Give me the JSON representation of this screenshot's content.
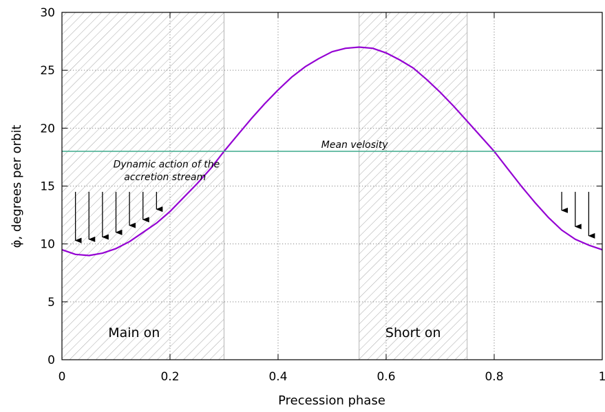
{
  "chart_data": {
    "type": "line",
    "title": "",
    "xlabel": "Precession phase",
    "ylabel": "φ̇, degrees per orbit",
    "xlim": [
      0,
      1
    ],
    "ylim": [
      0,
      30
    ],
    "x_ticks": [
      0,
      0.2,
      0.4,
      0.6,
      0.8,
      1
    ],
    "x_tick_labels": [
      "0",
      "0.2",
      "0.4",
      "0.6",
      "0.8",
      "1"
    ],
    "y_ticks": [
      0,
      5,
      10,
      15,
      20,
      25,
      30
    ],
    "y_tick_labels": [
      "0",
      "5",
      "10",
      "15",
      "20",
      "25",
      "30"
    ],
    "grid": true,
    "grid_style": "dotted",
    "series": [
      {
        "color": "#9400d3",
        "style": "solid",
        "x": [
          0,
          0.025,
          0.05,
          0.075,
          0.1,
          0.125,
          0.15,
          0.175,
          0.2,
          0.225,
          0.25,
          0.275,
          0.3,
          0.325,
          0.35,
          0.375,
          0.4,
          0.425,
          0.45,
          0.475,
          0.5,
          0.525,
          0.55,
          0.575,
          0.6,
          0.625,
          0.65,
          0.675,
          0.7,
          0.725,
          0.75,
          0.775,
          0.8,
          0.825,
          0.85,
          0.875,
          0.9,
          0.925,
          0.95,
          0.975,
          1
        ],
        "y": [
          9.5,
          9.1,
          9.0,
          9.2,
          9.6,
          10.2,
          11.0,
          11.8,
          12.8,
          14.0,
          15.2,
          16.5,
          18.0,
          19.4,
          20.8,
          22.1,
          23.3,
          24.4,
          25.3,
          26.0,
          26.6,
          26.9,
          27.0,
          26.9,
          26.5,
          25.9,
          25.2,
          24.2,
          23.1,
          21.9,
          20.6,
          19.3,
          18.0,
          16.5,
          15.0,
          13.6,
          12.3,
          11.2,
          10.4,
          9.9,
          9.5
        ]
      },
      {
        "name": "Mean velosity",
        "color": "#3caa8c",
        "style": "solid",
        "x": [
          0,
          1
        ],
        "y": [
          18,
          18
        ]
      }
    ],
    "shaded_regions": [
      {
        "x0": 0,
        "x1": 0.3,
        "label": "Main on",
        "pattern": "hatched"
      },
      {
        "x0": 0.55,
        "x1": 0.75,
        "label": "Short on",
        "pattern": "hatched"
      }
    ],
    "annotations": [
      {
        "text": "Dynamic action of the",
        "x": 0.095,
        "y": 16.6
      },
      {
        "text": "accretion stream",
        "x": 0.115,
        "y": 15.5
      },
      {
        "text": "Mean velosity",
        "x": 0.48,
        "y": 18.3
      }
    ],
    "arrows": [
      {
        "x": 0.025,
        "y_from": 14.5,
        "y_to": 10.3
      },
      {
        "x": 0.05,
        "y_from": 14.5,
        "y_to": 10.4
      },
      {
        "x": 0.075,
        "y_from": 14.5,
        "y_to": 10.6
      },
      {
        "x": 0.1,
        "y_from": 14.5,
        "y_to": 11.0
      },
      {
        "x": 0.125,
        "y_from": 14.5,
        "y_to": 11.6
      },
      {
        "x": 0.15,
        "y_from": 14.5,
        "y_to": 12.1
      },
      {
        "x": 0.175,
        "y_from": 14.5,
        "y_to": 13.0
      },
      {
        "x": 0.925,
        "y_from": 14.5,
        "y_to": 12.9
      },
      {
        "x": 0.95,
        "y_from": 14.5,
        "y_to": 11.5
      },
      {
        "x": 0.975,
        "y_from": 14.5,
        "y_to": 10.7
      }
    ]
  }
}
